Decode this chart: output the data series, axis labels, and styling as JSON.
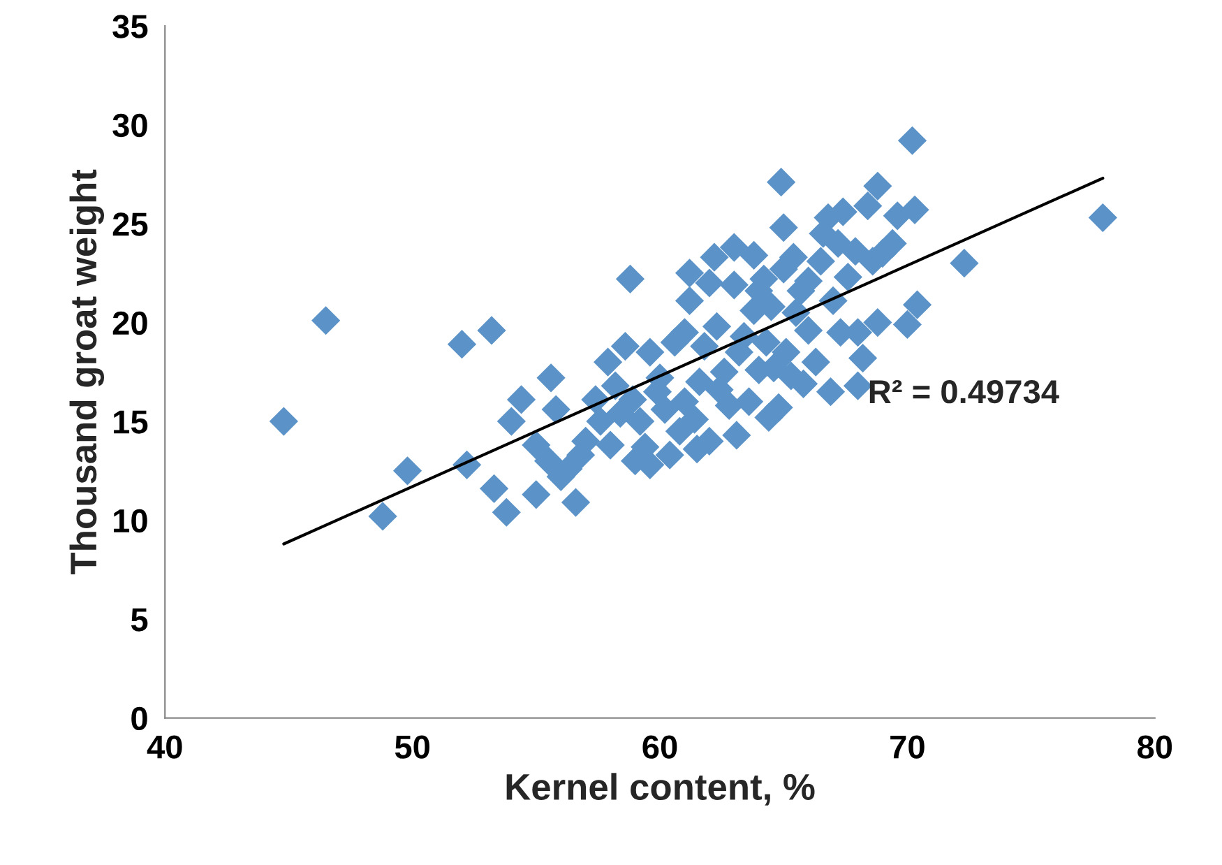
{
  "chart_data": {
    "type": "scatter",
    "xlabel": "Kernel content, %",
    "ylabel": "Thousand groat weight",
    "xlim": [
      40,
      80
    ],
    "xticks": [
      40,
      50,
      60,
      70,
      80
    ],
    "ylim": [
      0,
      35
    ],
    "yticks": [
      0,
      5,
      10,
      15,
      20,
      25,
      30,
      35
    ],
    "grid": false,
    "legend": false,
    "annotations": [
      "R² = 0.49734"
    ],
    "series": [
      {
        "marker": "diamond",
        "color": "#5b93c8",
        "x": [
          44.8,
          46.5,
          48.8,
          49.8,
          52.0,
          52.2,
          53.2,
          53.3,
          53.8,
          54.0,
          54.4,
          55.0,
          55.0,
          55.5,
          55.6,
          55.8,
          56.0,
          56.3,
          56.6,
          56.8,
          57.0,
          57.4,
          57.6,
          57.9,
          58.0,
          58.2,
          58.4,
          58.6,
          58.8,
          58.9,
          59.0,
          59.2,
          59.4,
          59.6,
          59.6,
          59.9,
          60.0,
          60.2,
          60.4,
          60.6,
          60.8,
          61.0,
          61.0,
          61.2,
          61.2,
          61.4,
          61.5,
          61.6,
          61.8,
          62.0,
          62.0,
          62.2,
          62.3,
          62.4,
          62.6,
          62.8,
          63.0,
          63.0,
          63.1,
          63.2,
          63.4,
          63.6,
          63.8,
          63.8,
          64.0,
          64.0,
          64.2,
          64.3,
          64.4,
          64.5,
          64.6,
          64.8,
          64.9,
          65.0,
          65.0,
          65.1,
          65.3,
          65.4,
          65.5,
          65.7,
          65.8,
          66.0,
          66.0,
          66.3,
          66.5,
          66.6,
          66.8,
          66.9,
          67.0,
          67.2,
          67.3,
          67.4,
          67.6,
          67.9,
          68.0,
          68.0,
          68.2,
          68.4,
          68.6,
          68.8,
          68.8,
          69.0,
          69.4,
          69.6,
          70.0,
          70.2,
          70.3,
          70.4,
          72.3,
          77.9
        ],
        "values": [
          15.0,
          20.1,
          10.2,
          12.5,
          18.9,
          12.8,
          19.6,
          11.6,
          10.4,
          15.0,
          16.1,
          11.3,
          13.8,
          13.0,
          17.2,
          15.6,
          12.2,
          12.6,
          10.9,
          13.3,
          14.0,
          16.1,
          15.0,
          18.0,
          13.8,
          16.8,
          15.4,
          18.8,
          22.2,
          16.1,
          13.0,
          15.0,
          13.7,
          18.5,
          12.8,
          16.5,
          17.2,
          15.6,
          13.3,
          19.0,
          14.5,
          16.0,
          19.5,
          21.1,
          22.5,
          15.1,
          13.6,
          17.0,
          18.8,
          22.0,
          14.0,
          23.3,
          19.8,
          16.6,
          17.5,
          15.8,
          21.9,
          23.8,
          14.3,
          18.5,
          19.3,
          16.0,
          23.4,
          20.6,
          17.6,
          21.6,
          22.2,
          19.0,
          15.2,
          20.8,
          17.7,
          15.7,
          27.1,
          24.8,
          22.7,
          18.5,
          17.3,
          23.3,
          20.5,
          21.6,
          16.9,
          19.6,
          22.1,
          18.0,
          23.1,
          24.5,
          25.3,
          16.5,
          21.1,
          24.0,
          19.5,
          25.6,
          22.3,
          23.6,
          19.5,
          16.8,
          18.2,
          25.9,
          23.1,
          26.9,
          20.0,
          23.5,
          24.0,
          25.4,
          19.9,
          29.2,
          25.7,
          20.9,
          23.0,
          25.3
        ]
      },
      {
        "type": "line",
        "color": "#000000",
        "marker": "none",
        "line_style": "solid",
        "x": [
          44.8,
          77.9
        ],
        "values": [
          8.8,
          27.3
        ]
      }
    ]
  }
}
